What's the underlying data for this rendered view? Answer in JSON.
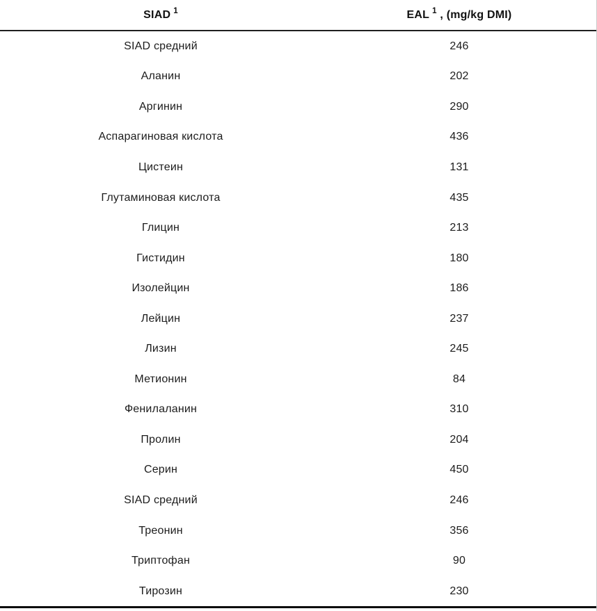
{
  "page": {
    "background_color": "#ffffff",
    "text_color": "#1c1c1c",
    "header_rule_color": "#1f1f1f",
    "bottom_rule_color": "#0a0a0a",
    "right_edge_line_color": "#c9c9c9"
  },
  "table": {
    "headers": [
      {
        "label": "SIAD",
        "superscript": "1",
        "suffix": ""
      },
      {
        "label": "EAL",
        "superscript": "1",
        "suffix": " , (mg/kg DMI)"
      }
    ],
    "rows": [
      {
        "name": "SIAD средний",
        "value": "246"
      },
      {
        "name": "Аланин",
        "value": "202"
      },
      {
        "name": "Аргинин",
        "value": "290"
      },
      {
        "name": "Аспарагиновая кислота",
        "value": "436"
      },
      {
        "name": "Цистеин",
        "value": "131"
      },
      {
        "name": "Глутаминовая кислота",
        "value": "435"
      },
      {
        "name": "Глицин",
        "value": "213"
      },
      {
        "name": "Гистидин",
        "value": "180"
      },
      {
        "name": "Изолейцин",
        "value": "186"
      },
      {
        "name": "Лейцин",
        "value": "237"
      },
      {
        "name": "Лизин",
        "value": "245"
      },
      {
        "name": "Метионин",
        "value": "84"
      },
      {
        "name": "Фенилаланин",
        "value": "310"
      },
      {
        "name": "Пролин",
        "value": "204"
      },
      {
        "name": "Серин",
        "value": "450"
      },
      {
        "name": "SIAD средний",
        "value": "246"
      },
      {
        "name": "Треонин",
        "value": "356"
      },
      {
        "name": "Триптофан",
        "value": "90"
      },
      {
        "name": "Тирозин",
        "value": "230"
      }
    ]
  }
}
